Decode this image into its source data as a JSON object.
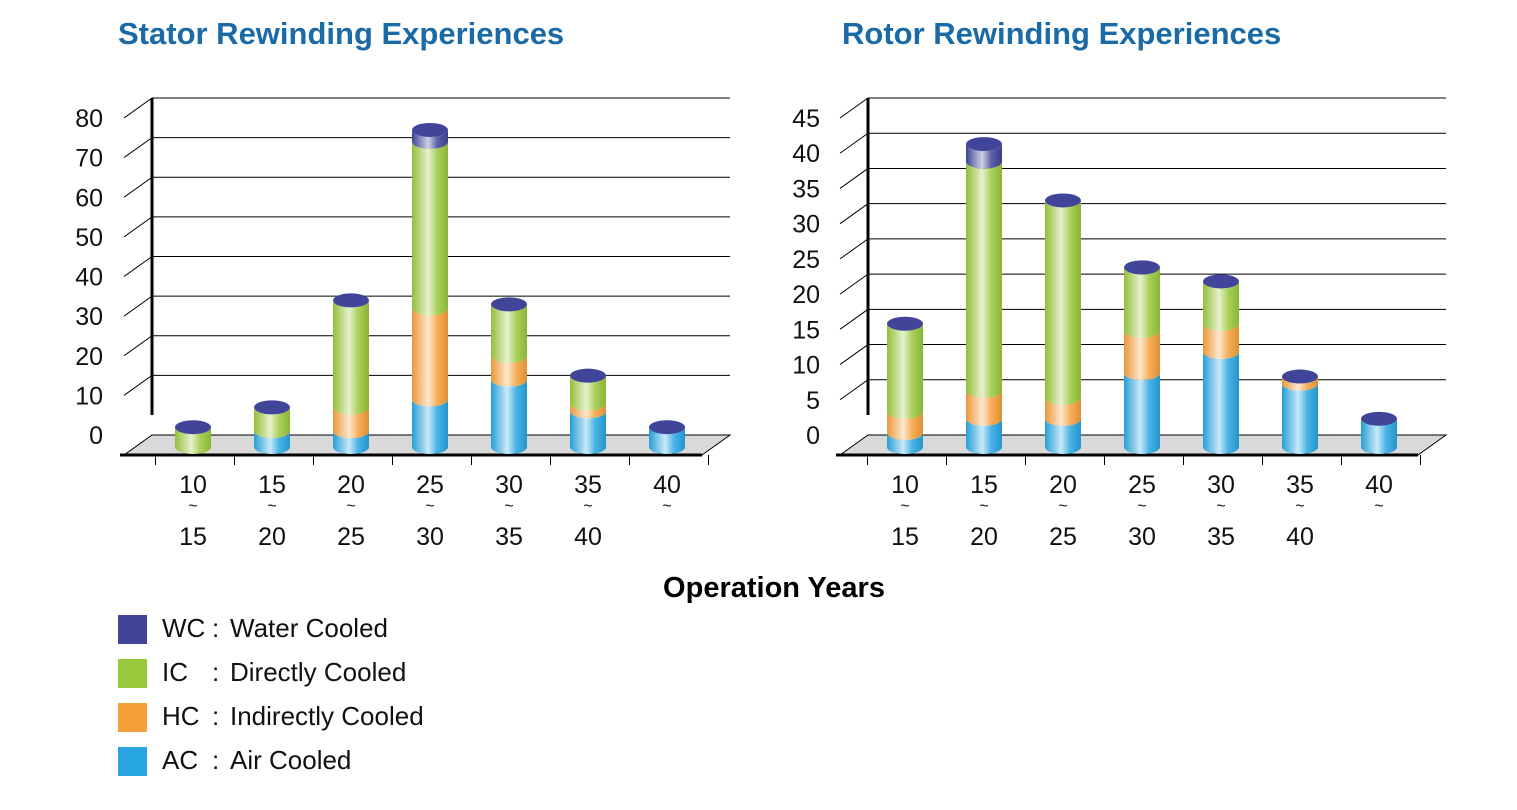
{
  "x_title": "Operation Years",
  "legend": [
    {
      "code": "WC",
      "name": "Water Cooled",
      "color": "#40459a"
    },
    {
      "code": "IC",
      "name": "Directly Cooled",
      "color": "#9ac83c"
    },
    {
      "code": "HC",
      "name": "Indirectly Cooled",
      "color": "#f6a03b"
    },
    {
      "code": "AC",
      "name": "Air Cooled",
      "color": "#28a6e1"
    }
  ],
  "chart_data": [
    {
      "type": "bar",
      "title": "Stator Rewinding Experiences",
      "xlabel": "Operation Years",
      "ylabel": "",
      "stacked": true,
      "ylim": [
        0,
        80
      ],
      "yticks": [
        "0",
        "10",
        "20",
        "30",
        "40",
        "50",
        "60",
        "70",
        "80"
      ],
      "categories": [
        {
          "top": "10",
          "mid": "~",
          "bottom": "15"
        },
        {
          "top": "15",
          "mid": "~",
          "bottom": "20"
        },
        {
          "top": "20",
          "mid": "~",
          "bottom": "25"
        },
        {
          "top": "25",
          "mid": "~",
          "bottom": "30"
        },
        {
          "top": "30",
          "mid": "~",
          "bottom": "35"
        },
        {
          "top": "35",
          "mid": "~",
          "bottom": "40"
        },
        {
          "top": "40",
          "mid": "~",
          "bottom": ""
        }
      ],
      "series": [
        {
          "name": "AC",
          "color": "#28a6e1",
          "values": [
            0,
            4,
            4,
            12,
            17,
            9,
            5
          ]
        },
        {
          "name": "HC",
          "color": "#f6a03b",
          "values": [
            0,
            0,
            6,
            23,
            6,
            2,
            0
          ]
        },
        {
          "name": "IC",
          "color": "#9ac83c",
          "values": [
            5,
            6,
            27,
            42,
            13,
            7,
            0
          ]
        },
        {
          "name": "WC",
          "color": "#40459a",
          "values": [
            0,
            0,
            0,
            3,
            0,
            0,
            0
          ]
        }
      ]
    },
    {
      "type": "bar",
      "title": "Rotor Rewinding Experiences",
      "xlabel": "Operation Years",
      "ylabel": "",
      "stacked": true,
      "ylim": [
        0,
        45
      ],
      "yticks": [
        "0",
        "5",
        "10",
        "15",
        "20",
        "25",
        "30",
        "35",
        "40",
        "45"
      ],
      "categories": [
        {
          "top": "10",
          "mid": "~",
          "bottom": "15"
        },
        {
          "top": "15",
          "mid": "~",
          "bottom": "20"
        },
        {
          "top": "20",
          "mid": "~",
          "bottom": "25"
        },
        {
          "top": "25",
          "mid": "~",
          "bottom": "30"
        },
        {
          "top": "30",
          "mid": "~",
          "bottom": "35"
        },
        {
          "top": "35",
          "mid": "~",
          "bottom": "40"
        },
        {
          "top": "40",
          "mid": "~",
          "bottom": ""
        }
      ],
      "series": [
        {
          "name": "AC",
          "color": "#28a6e1",
          "values": [
            2,
            4,
            4,
            10.5,
            13.5,
            9,
            4
          ]
        },
        {
          "name": "HC",
          "color": "#f6a03b",
          "values": [
            3,
            4,
            3,
            6,
            4,
            1,
            0
          ]
        },
        {
          "name": "IC",
          "color": "#9ac83c",
          "values": [
            12.5,
            32.5,
            28,
            9,
            6,
            0,
            0
          ]
        },
        {
          "name": "WC",
          "color": "#40459a",
          "values": [
            0,
            2.5,
            0,
            0,
            0,
            0,
            0
          ]
        }
      ]
    }
  ]
}
